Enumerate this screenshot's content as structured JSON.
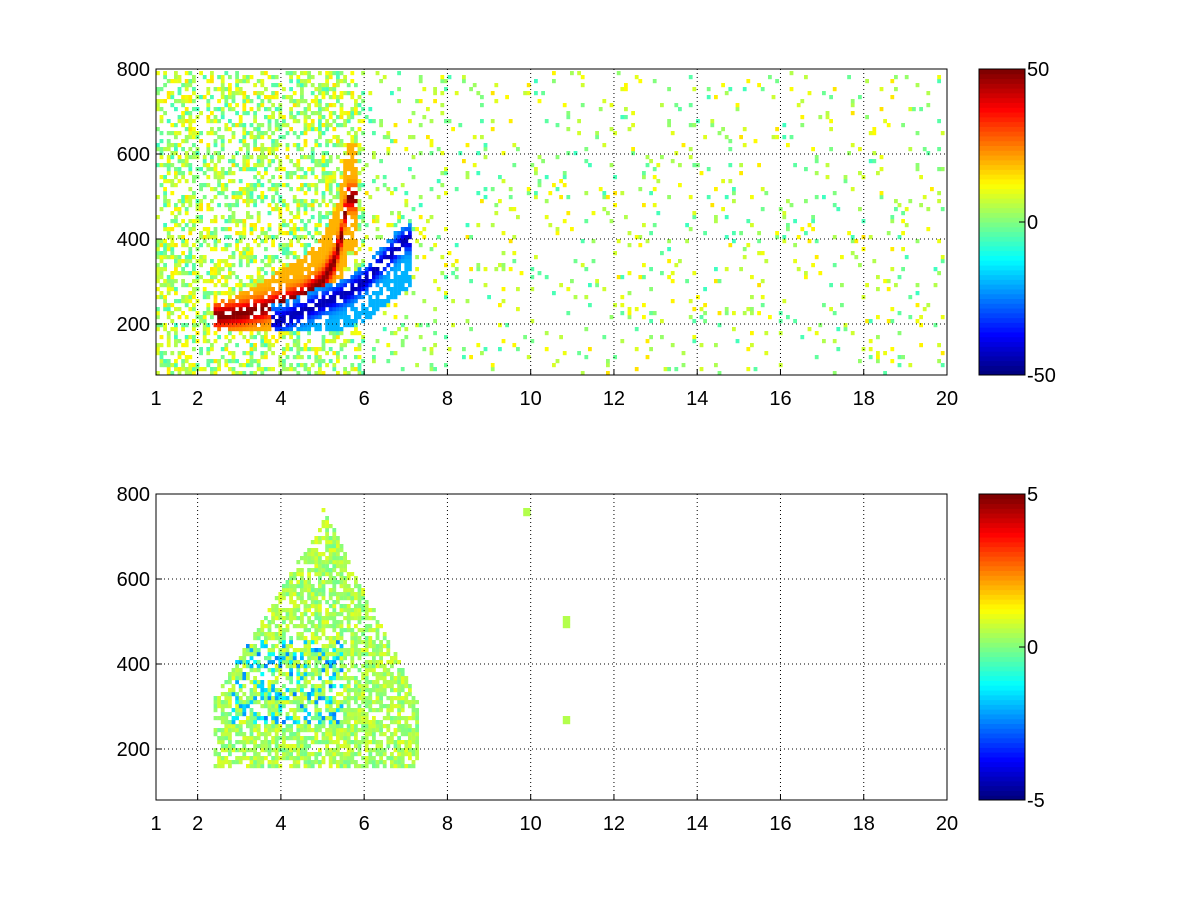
{
  "figure": {
    "background": "#ffffff",
    "grid": "dotted",
    "colormap": "jet"
  },
  "chart_data": [
    {
      "type": "heatmap",
      "title": "",
      "xlabel": "",
      "ylabel": "",
      "xlim": [
        1,
        20
      ],
      "ylim": [
        80,
        800
      ],
      "grid": true,
      "xticks": [
        1,
        2,
        4,
        6,
        8,
        10,
        12,
        14,
        16,
        18,
        20
      ],
      "yticks": [
        200,
        400,
        600,
        800
      ],
      "colorbar": {
        "range": [
          -50,
          50
        ],
        "ticks": [
          -50,
          0,
          50
        ],
        "placement": "right"
      },
      "features": [
        {
          "description": "positive ridge",
          "x": [
            2.5,
            3.0,
            3.5,
            4.0,
            4.5,
            5.0,
            5.3,
            5.5,
            5.6
          ],
          "y": [
            220,
            225,
            235,
            250,
            265,
            300,
            350,
            420,
            500
          ],
          "value": 45
        },
        {
          "description": "negative ridge",
          "x": [
            4.0,
            4.5,
            5.0,
            5.5,
            6.0,
            6.5,
            7.0
          ],
          "y": [
            210,
            230,
            250,
            270,
            300,
            350,
            400
          ],
          "value": -45
        },
        {
          "description": "scattered noise",
          "x_range": [
            1,
            20
          ],
          "y_range": [
            80,
            800
          ],
          "value_range": [
            -10,
            15
          ]
        }
      ]
    },
    {
      "type": "heatmap",
      "title": "",
      "xlabel": "",
      "ylabel": "",
      "xlim": [
        1,
        20
      ],
      "ylim": [
        80,
        800
      ],
      "grid": true,
      "xticks": [
        1,
        2,
        4,
        6,
        8,
        10,
        12,
        14,
        16,
        18,
        20
      ],
      "yticks": [
        200,
        400,
        600,
        800
      ],
      "colorbar": {
        "range": [
          -5,
          5
        ],
        "ticks": [
          -5,
          0,
          5
        ],
        "placement": "right"
      },
      "features": [
        {
          "description": "near-zero region",
          "x_range": [
            2.5,
            7.2
          ],
          "y_range": [
            160,
            780
          ],
          "value": 0.5
        },
        {
          "description": "negative patch",
          "x_range": [
            2.8,
            5.5
          ],
          "y_range": [
            260,
            460
          ],
          "value": -2
        },
        {
          "description": "isolated points",
          "x": [
            10.9,
            10.9,
            9.9
          ],
          "y": [
            270,
            500,
            760
          ],
          "value": 0.5
        }
      ]
    }
  ]
}
